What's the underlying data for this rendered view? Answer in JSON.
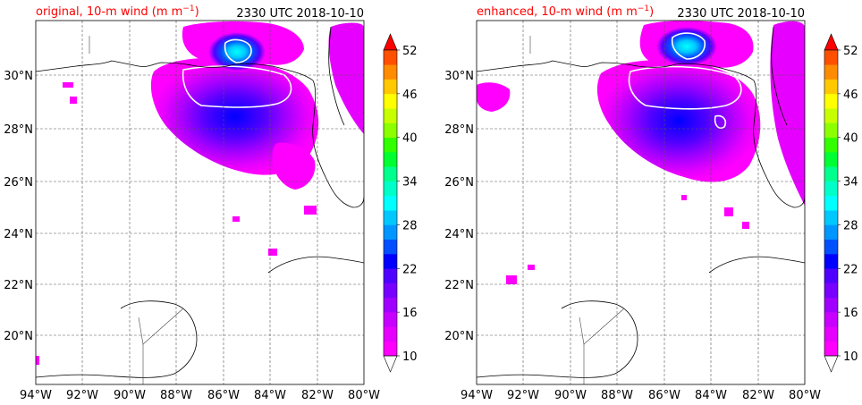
{
  "panels": [
    {
      "id": "original",
      "title_left": "original, 10-m wind (m m",
      "title_left_sup": "−1",
      "title_left_end": ")",
      "title_right": "2330 UTC 2018-10-10"
    },
    {
      "id": "enhanced",
      "title_left": "enhanced, 10-m wind (m m",
      "title_left_sup": "−1",
      "title_left_end": ")",
      "title_right": "2330 UTC 2018-10-10"
    }
  ],
  "map": {
    "lon_range": [
      -94,
      -80
    ],
    "lat_range": [
      18,
      32
    ],
    "x_ticks": [
      "94°W",
      "92°W",
      "90°W",
      "88°W",
      "86°W",
      "84°W",
      "82°W",
      "80°W"
    ],
    "y_ticks": [
      "30°N",
      "28°N",
      "26°N",
      "24°N",
      "22°N",
      "20°N"
    ]
  },
  "colorbar": {
    "levels": [
      10,
      12,
      14,
      16,
      18,
      20,
      22,
      24,
      26,
      28,
      30,
      32,
      34,
      36,
      38,
      40,
      42,
      44,
      46,
      48,
      50,
      52
    ],
    "tick_labels": [
      "52",
      "46",
      "40",
      "34",
      "28",
      "22",
      "16",
      "10"
    ],
    "colors": [
      "#ff00ff",
      "#e600ff",
      "#c800ff",
      "#a000ff",
      "#7800ff",
      "#5000ff",
      "#0000ff",
      "#0050ff",
      "#0096ff",
      "#00c8ff",
      "#00ffff",
      "#00ffc8",
      "#00ff8c",
      "#00ff32",
      "#32ff00",
      "#8cff00",
      "#c8ff00",
      "#ffff00",
      "#ffc800",
      "#ff8c00",
      "#ff5000"
    ],
    "over_color": "#ff0000",
    "under_color": "#ffffff"
  }
}
